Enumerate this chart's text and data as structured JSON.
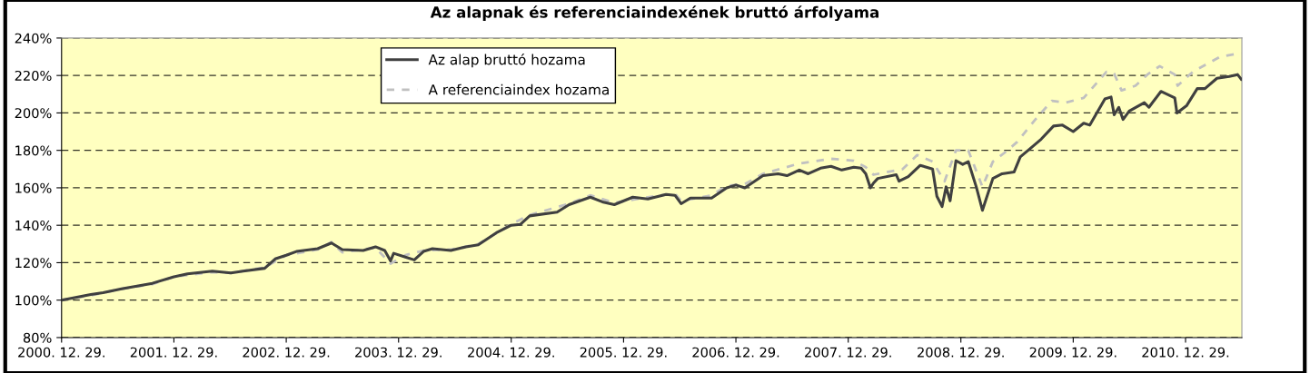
{
  "chart_data": {
    "type": "line",
    "title": "Az alapnak és referenciaindexének bruttó árfolyama",
    "xlim": [
      "2000-12-29",
      "2011-06-30"
    ],
    "ylim": [
      80,
      240
    ],
    "xticks": [
      {
        "value": "2000-12-29",
        "label": "2000. 12. 29."
      },
      {
        "value": "2001-12-29",
        "label": "2001. 12. 29."
      },
      {
        "value": "2002-12-29",
        "label": "2002. 12. 29."
      },
      {
        "value": "2003-12-29",
        "label": "2003. 12. 29."
      },
      {
        "value": "2004-12-29",
        "label": "2004. 12. 29."
      },
      {
        "value": "2005-12-29",
        "label": "2005. 12. 29."
      },
      {
        "value": "2006-12-29",
        "label": "2006. 12. 29."
      },
      {
        "value": "2007-12-29",
        "label": "2007. 12. 29."
      },
      {
        "value": "2008-12-29",
        "label": "2008. 12. 29."
      },
      {
        "value": "2009-12-29",
        "label": "2009. 12. 29."
      },
      {
        "value": "2010-12-29",
        "label": "2010. 12. 29."
      }
    ],
    "yticks": [
      {
        "value": 80,
        "label": "80%"
      },
      {
        "value": 100,
        "label": "100%"
      },
      {
        "value": 120,
        "label": "120%"
      },
      {
        "value": 140,
        "label": "140%"
      },
      {
        "value": 160,
        "label": "160%"
      },
      {
        "value": 180,
        "label": "180%"
      },
      {
        "value": 200,
        "label": "200%"
      },
      {
        "value": 220,
        "label": "220%"
      },
      {
        "value": 240,
        "label": "240%"
      }
    ],
    "grid": "y",
    "legend": "top",
    "marker": "none",
    "series": [
      {
        "name": "Az alap bruttó hozama",
        "color": "#404040",
        "line_style": "solid",
        "x": [
          "2000-12-29",
          "2001-04-03",
          "2001-05-13",
          "2001-07-12",
          "2001-10-20",
          "2001-12-29",
          "2002-02-11",
          "2002-05-03",
          "2002-07-02",
          "2002-08-11",
          "2002-10-20",
          "2002-11-23",
          "2002-12-29",
          "2003-01-31",
          "2003-04-10",
          "2003-05-25",
          "2003-06-29",
          "2003-09-05",
          "2003-10-15",
          "2003-11-14",
          "2003-12-03",
          "2003-12-13",
          "2004-01-20",
          "2004-02-18",
          "2004-03-19",
          "2004-04-17",
          "2004-06-16",
          "2004-08-04",
          "2004-09-13",
          "2004-11-11",
          "2004-12-29",
          "2005-01-28",
          "2005-02-27",
          "2005-05-27",
          "2005-07-05",
          "2005-09-12",
          "2005-10-21",
          "2005-11-29",
          "2006-01-28",
          "2006-03-18",
          "2006-05-16",
          "2006-06-14",
          "2006-07-04",
          "2006-08-03",
          "2006-10-11",
          "2006-11-29",
          "2006-12-29",
          "2007-01-27",
          "2007-03-27",
          "2007-05-15",
          "2007-06-13",
          "2007-07-23",
          "2007-08-21",
          "2007-09-30",
          "2007-11-03",
          "2007-12-08",
          "2008-01-16",
          "2008-02-09",
          "2008-02-24",
          "2008-03-10",
          "2008-03-20",
          "2008-04-03",
          "2008-06-02",
          "2008-06-11",
          "2008-07-11",
          "2008-08-19",
          "2008-09-28",
          "2008-10-12",
          "2008-10-29",
          "2008-11-11",
          "2008-11-24",
          "2008-12-13",
          "2009-01-04",
          "2009-01-22",
          "2009-02-17",
          "2009-03-09",
          "2009-03-24",
          "2009-04-12",
          "2009-05-12",
          "2009-06-20",
          "2009-07-10",
          "2009-08-08",
          "2009-09-16",
          "2009-10-26",
          "2009-11-24",
          "2009-12-29",
          "2010-02-01",
          "2010-02-21",
          "2010-04-11",
          "2010-05-01",
          "2010-05-11",
          "2010-05-26",
          "2010-06-09",
          "2010-06-29",
          "2010-08-17",
          "2010-09-01",
          "2010-10-10",
          "2010-11-24",
          "2010-12-01",
          "2011-01-02",
          "2011-02-05",
          "2011-03-02",
          "2011-04-10",
          "2011-05-20",
          "2011-06-16",
          "2011-06-28"
        ],
        "values": [
          100,
          103,
          104,
          106,
          109,
          112.5,
          114,
          115.5,
          114.5,
          115.5,
          117,
          122,
          124,
          126,
          127.5,
          130.5,
          127,
          126.5,
          128.5,
          126.5,
          121,
          125,
          123,
          121.5,
          126,
          127.5,
          126.5,
          128.5,
          129.5,
          136,
          140,
          140.5,
          145,
          147,
          151,
          155,
          152.5,
          151,
          155,
          154,
          156.5,
          156,
          151.5,
          154.5,
          154.5,
          160,
          161.5,
          160,
          166.5,
          167.5,
          166.5,
          169.5,
          167.5,
          170.5,
          171.5,
          169.5,
          171,
          170.5,
          167.5,
          160,
          162.5,
          165,
          167,
          163.5,
          166,
          172,
          170,
          155.5,
          150,
          160.5,
          153,
          174.5,
          172.5,
          174,
          160.5,
          148,
          155.5,
          165,
          167.5,
          168.5,
          176.5,
          180.5,
          186,
          193,
          193.5,
          190,
          194.5,
          193.5,
          207.5,
          208.5,
          199,
          203,
          196.5,
          201,
          205.5,
          203,
          211.5,
          208,
          200,
          204,
          213,
          213,
          218.5,
          219.5,
          220.5,
          218
        ]
      },
      {
        "name": "A referenciaindex hozama",
        "color": "#c0c0c0",
        "line_style": "dashed",
        "x": [
          "2000-12-29",
          "2001-04-03",
          "2001-07-12",
          "2001-10-20",
          "2001-12-29",
          "2002-05-03",
          "2002-07-02",
          "2002-10-20",
          "2002-12-29",
          "2003-04-10",
          "2003-05-25",
          "2003-06-29",
          "2003-10-15",
          "2003-12-03",
          "2004-01-20",
          "2004-03-19",
          "2004-06-16",
          "2004-09-13",
          "2004-12-29",
          "2005-02-27",
          "2005-07-05",
          "2005-09-12",
          "2005-11-29",
          "2006-03-18",
          "2006-06-14",
          "2006-07-04",
          "2006-10-11",
          "2006-11-29",
          "2007-01-27",
          "2007-03-27",
          "2007-07-23",
          "2007-11-03",
          "2008-01-16",
          "2008-02-24",
          "2008-03-20",
          "2008-06-23",
          "2008-08-09",
          "2008-09-28",
          "2008-11-06",
          "2008-12-13",
          "2009-01-22",
          "2009-03-09",
          "2009-04-12",
          "2009-05-22",
          "2009-06-30",
          "2009-08-28",
          "2009-10-21",
          "2009-12-04",
          "2010-02-01",
          "2010-04-16",
          "2010-05-11",
          "2010-06-04",
          "2010-07-19",
          "2010-08-27",
          "2010-10-06",
          "2010-11-24",
          "2010-12-03",
          "2011-01-22",
          "2011-04-20",
          "2011-06-28"
        ],
        "values": [
          100,
          102.5,
          106,
          108.5,
          112.5,
          115,
          114.5,
          117.5,
          124,
          127,
          131,
          125.5,
          128,
          119.5,
          124,
          126.5,
          127,
          130,
          140.5,
          145.5,
          151.5,
          156,
          152,
          155,
          157,
          153,
          156,
          161,
          162,
          167.5,
          173,
          175.5,
          174.5,
          171,
          167,
          170,
          177.5,
          174,
          163.5,
          180,
          180,
          160.5,
          174,
          179,
          184.5,
          196.5,
          206.5,
          205.5,
          208,
          222,
          221,
          212,
          214.5,
          220.5,
          225,
          220.5,
          214.5,
          222,
          230,
          232
        ]
      }
    ]
  }
}
